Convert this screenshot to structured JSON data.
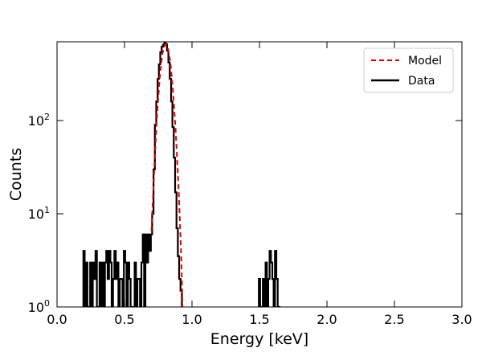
{
  "chart_data": {
    "type": "line",
    "title": "",
    "xlabel": "Energy [keV]",
    "ylabel": "Counts",
    "xlim": [
      0.0,
      3.0
    ],
    "ylim": [
      1,
      700
    ],
    "yscale": "log",
    "grid": false,
    "legend": {
      "placement": "top-right",
      "entries": [
        "Model",
        "Data"
      ]
    },
    "x_ticks": [
      "0.0",
      "0.5",
      "1.0",
      "1.5",
      "2.0",
      "2.5",
      "3.0"
    ],
    "y_ticks": [
      {
        "base": "10",
        "exp": "0"
      },
      {
        "base": "10",
        "exp": "1"
      },
      {
        "base": "10",
        "exp": "2"
      }
    ],
    "series": [
      {
        "name": "Model",
        "color": "#e00000",
        "style": "dashed",
        "x": [
          0.7,
          0.72,
          0.74,
          0.76,
          0.78,
          0.8,
          0.81,
          0.82,
          0.84,
          0.86,
          0.88,
          0.9,
          0.92,
          0.93
        ],
        "y": [
          6.5,
          30,
          110,
          280,
          520,
          650,
          660,
          620,
          420,
          200,
          75,
          20,
          3.5,
          1.0
        ]
      },
      {
        "name": "Data",
        "color": "#000000",
        "style": "solid",
        "x": [
          0.2,
          0.21,
          0.22,
          0.23,
          0.24,
          0.25,
          0.26,
          0.27,
          0.28,
          0.29,
          0.3,
          0.31,
          0.32,
          0.33,
          0.34,
          0.35,
          0.36,
          0.37,
          0.38,
          0.39,
          0.4,
          0.41,
          0.42,
          0.43,
          0.44,
          0.45,
          0.46,
          0.47,
          0.48,
          0.49,
          0.5,
          0.51,
          0.52,
          0.53,
          0.54,
          0.55,
          0.56,
          0.57,
          0.58,
          0.59,
          0.6,
          0.61,
          0.62,
          0.63,
          0.64,
          0.65,
          0.66,
          0.67,
          0.68,
          0.69,
          0.7,
          0.71,
          0.72,
          0.73,
          0.74,
          0.75,
          0.76,
          0.77,
          0.78,
          0.79,
          0.8,
          0.81,
          0.82,
          0.83,
          0.84,
          0.85,
          0.86,
          0.87,
          0.88,
          0.89,
          0.9,
          0.91,
          0.92,
          0.93,
          1.5,
          1.51,
          1.52,
          1.53,
          1.54,
          1.55,
          1.56,
          1.57,
          1.58,
          1.59,
          1.6,
          1.61,
          1.62,
          1.63,
          1.64,
          1.65
        ],
        "y": [
          4,
          1,
          3,
          1,
          1,
          3,
          1,
          3,
          2,
          4,
          1,
          1,
          3,
          1,
          3,
          1,
          3,
          4,
          2,
          4,
          3,
          1,
          2,
          4,
          2,
          3,
          1,
          2,
          2,
          1,
          4,
          3,
          1,
          3,
          2,
          1,
          1,
          1,
          3,
          1,
          2,
          2,
          1,
          3,
          6,
          1,
          6,
          3,
          6,
          4,
          6,
          10,
          30,
          90,
          160,
          280,
          400,
          540,
          620,
          650,
          700,
          660,
          560,
          420,
          280,
          160,
          85,
          40,
          17,
          7,
          3.5,
          2,
          1.5,
          1,
          2,
          1,
          1,
          2,
          1,
          3,
          1,
          2,
          4,
          3,
          2,
          1,
          4,
          2,
          1,
          1
        ]
      }
    ]
  }
}
